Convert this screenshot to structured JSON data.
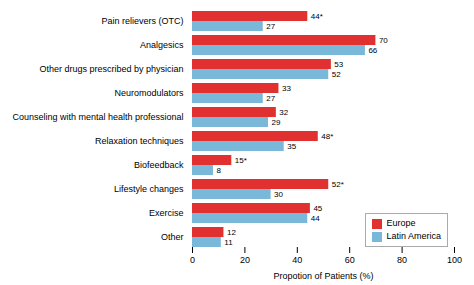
{
  "chart_data": {
    "type": "bar",
    "orientation": "horizontal",
    "categories": [
      "Pain relievers (OTC)",
      "Analgesics",
      "Other drugs prescribed by physician",
      "Neuromodulators",
      "Counseling with mental health professional",
      "Relaxation techniques",
      "Biofeedback",
      "Lifestyle changes",
      "Exercise",
      "Other"
    ],
    "series": [
      {
        "name": "Europe",
        "color": "#e03030",
        "values": [
          44,
          70,
          53,
          33,
          32,
          48,
          15,
          52,
          45,
          12
        ],
        "value_labels": [
          "44*",
          "70",
          "53",
          "33",
          "32",
          "48*",
          "15*",
          "52*",
          "45",
          "12"
        ]
      },
      {
        "name": "Latin America",
        "color": "#7ab8d9",
        "values": [
          27,
          66,
          52,
          27,
          29,
          35,
          8,
          30,
          44,
          11
        ]
      }
    ],
    "xlabel": "Propotion of Patients (%)",
    "xlim": [
      0,
      100
    ],
    "xticks": [
      0,
      20,
      40,
      60,
      80,
      100
    ],
    "grid": false,
    "data_labels": true,
    "legend": "lower right"
  }
}
